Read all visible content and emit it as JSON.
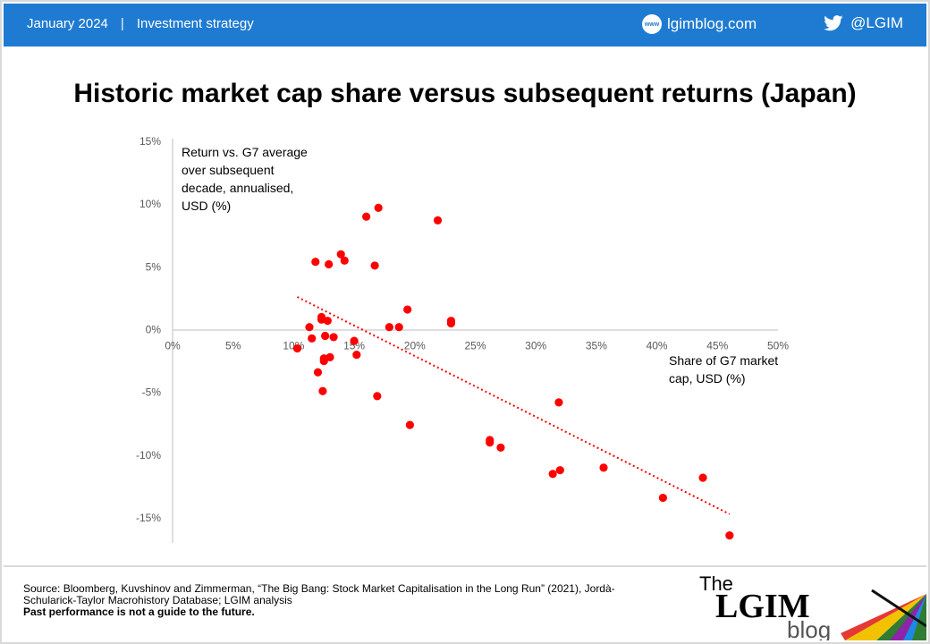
{
  "header": {
    "date": "January 2024",
    "separator": "|",
    "category": "Investment strategy",
    "site_icon_label": "www",
    "site": "lgimblog.com",
    "handle": "@LGIM",
    "bar_color": "#1f7bd1"
  },
  "title": "Historic market cap share versus subsequent returns (Japan)",
  "chart_data": {
    "type": "scatter",
    "title": "Historic market cap share versus subsequent returns (Japan)",
    "xlabel": "Share of G7 market cap, USD (%)",
    "ylabel": "Return vs. G7 average over subsequent decade, annualised, USD (%)",
    "ylabel_lines": [
      "Return vs. G7 average",
      "over subsequent",
      "decade, annualised,",
      "USD (%)"
    ],
    "xlabel_lines": [
      "Share of G7 market",
      "cap, USD (%)"
    ],
    "xlim": [
      0,
      50
    ],
    "ylim": [
      -15,
      15
    ],
    "x_ticks": [
      "0%",
      "5%",
      "10%",
      "15%",
      "20%",
      "25%",
      "30%",
      "35%",
      "40%",
      "45%",
      "50%"
    ],
    "y_ticks": [
      "15%",
      "10%",
      "5%",
      "0%",
      "-5%",
      "-10%",
      "-15%"
    ],
    "grid": false,
    "legend": "none",
    "point_color": "#ff0000",
    "trendline": {
      "style": "dotted",
      "color": "#ff0000",
      "from": [
        10.3,
        2.6
      ],
      "to": [
        46.0,
        -14.7
      ]
    },
    "points": [
      [
        10.3,
        -1.5
      ],
      [
        11.3,
        0.2
      ],
      [
        11.5,
        -0.7
      ],
      [
        11.8,
        5.4
      ],
      [
        12.0,
        -3.4
      ],
      [
        12.3,
        1.0
      ],
      [
        12.3,
        0.8
      ],
      [
        12.4,
        -4.9
      ],
      [
        12.5,
        -2.5
      ],
      [
        12.5,
        -2.3
      ],
      [
        12.6,
        -0.5
      ],
      [
        12.8,
        0.7
      ],
      [
        12.9,
        5.2
      ],
      [
        13.0,
        -2.2
      ],
      [
        13.3,
        -0.6
      ],
      [
        13.9,
        6.0
      ],
      [
        14.2,
        5.5
      ],
      [
        15.0,
        -0.9
      ],
      [
        15.2,
        -2.0
      ],
      [
        16.0,
        9.0
      ],
      [
        16.7,
        5.1
      ],
      [
        16.9,
        -5.3
      ],
      [
        17.0,
        9.7
      ],
      [
        17.9,
        0.2
      ],
      [
        18.7,
        0.2
      ],
      [
        19.4,
        1.6
      ],
      [
        19.6,
        -7.6
      ],
      [
        21.9,
        8.7
      ],
      [
        23.0,
        0.7
      ],
      [
        23.0,
        0.5
      ],
      [
        26.2,
        -8.8
      ],
      [
        26.2,
        -9.0
      ],
      [
        27.1,
        -9.4
      ],
      [
        31.4,
        -11.5
      ],
      [
        31.9,
        -5.8
      ],
      [
        32.0,
        -11.2
      ],
      [
        35.6,
        -11.0
      ],
      [
        40.5,
        -13.4
      ],
      [
        43.8,
        -11.8
      ],
      [
        46.0,
        -16.4
      ]
    ]
  },
  "footer": {
    "source_line1": "Source: Bloomberg, Kuvshinov and Zimmerman, “The Big Bang: Stock Market Capitalisation in the Long Run” (2021), Jordà-",
    "source_line2": "Schularick-Taylor Macrohistory Database; LGIM analysis",
    "disclaimer": "Past performance is not a guide to the future."
  },
  "logo": {
    "the": "The",
    "brand": "LGIM",
    "blog": "blog"
  }
}
